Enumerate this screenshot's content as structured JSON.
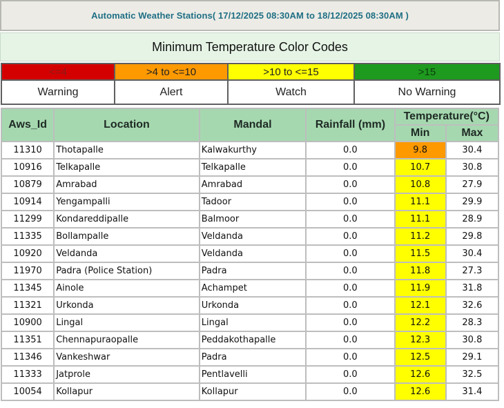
{
  "header": {
    "title": "Automatic Weather Stations( 17/12/2025 08:30AM to 18/12/2025 08:30AM )"
  },
  "codes": {
    "title": "Minimum Temperature Color Codes",
    "bands": [
      {
        "range": "<=4",
        "label": "Warning",
        "color": "#d40000",
        "text_color": "#8b1a1a"
      },
      {
        "range": ">4 to <=10",
        "label": "Alert",
        "color": "#ff9900",
        "text_color": "#222222"
      },
      {
        "range": ">10 to <=15",
        "label": "Watch",
        "color": "#ffff00",
        "text_color": "#222222"
      },
      {
        "range": ">15",
        "label": "No Warning",
        "color": "#1e9a1e",
        "text_color": "#0d3d0d"
      }
    ]
  },
  "table": {
    "headers": {
      "aws_id": "Aws_Id",
      "location": "Location",
      "mandal": "Mandal",
      "rainfall": "Rainfall (mm)",
      "temperature": "Temperature(°C)",
      "min": "Min",
      "max": "Max"
    },
    "rows": [
      {
        "aws_id": "11310",
        "location": "Thotapalle",
        "mandal": "Kalwakurthy",
        "rainfall": "0.0",
        "min": "9.8",
        "max": "30.4"
      },
      {
        "aws_id": "10916",
        "location": "Telkapalle",
        "mandal": "Telkapalle",
        "rainfall": "0.0",
        "min": "10.7",
        "max": "30.8"
      },
      {
        "aws_id": "10879",
        "location": "Amrabad",
        "mandal": "Amrabad",
        "rainfall": "0.0",
        "min": "10.8",
        "max": "27.9"
      },
      {
        "aws_id": "10914",
        "location": "Yengampalli",
        "mandal": "Tadoor",
        "rainfall": "0.0",
        "min": "11.1",
        "max": "29.9"
      },
      {
        "aws_id": "11299",
        "location": "Kondareddipalle",
        "mandal": "Balmoor",
        "rainfall": "0.0",
        "min": "11.1",
        "max": "28.9"
      },
      {
        "aws_id": "11335",
        "location": "Bollampalle",
        "mandal": "Veldanda",
        "rainfall": "0.0",
        "min": "11.2",
        "max": "29.8"
      },
      {
        "aws_id": "10920",
        "location": "Veldanda",
        "mandal": "Veldanda",
        "rainfall": "0.0",
        "min": "11.5",
        "max": "30.4"
      },
      {
        "aws_id": "11970",
        "location": "Padra (Police Station)",
        "mandal": "Padra",
        "rainfall": "0.0",
        "min": "11.8",
        "max": "27.3"
      },
      {
        "aws_id": "11345",
        "location": "Ainole",
        "mandal": "Achampet",
        "rainfall": "0.0",
        "min": "11.9",
        "max": "31.8"
      },
      {
        "aws_id": "11321",
        "location": "Urkonda",
        "mandal": "Urkonda",
        "rainfall": "0.0",
        "min": "12.1",
        "max": "32.6"
      },
      {
        "aws_id": "10900",
        "location": "Lingal",
        "mandal": "Lingal",
        "rainfall": "0.0",
        "min": "12.2",
        "max": "28.3"
      },
      {
        "aws_id": "11351",
        "location": "Chennapuraopalle",
        "mandal": "Peddakothapalle",
        "rainfall": "0.0",
        "min": "12.3",
        "max": "30.8"
      },
      {
        "aws_id": "11346",
        "location": "Vankeshwar",
        "mandal": "Padra",
        "rainfall": "0.0",
        "min": "12.5",
        "max": "29.1"
      },
      {
        "aws_id": "11333",
        "location": "Jatprole",
        "mandal": "Pentlavelli",
        "rainfall": "0.0",
        "min": "12.6",
        "max": "32.5"
      },
      {
        "aws_id": "10054",
        "location": "Kollapur",
        "mandal": "Kollapur",
        "rainfall": "0.0",
        "min": "12.6",
        "max": "31.4"
      }
    ]
  }
}
